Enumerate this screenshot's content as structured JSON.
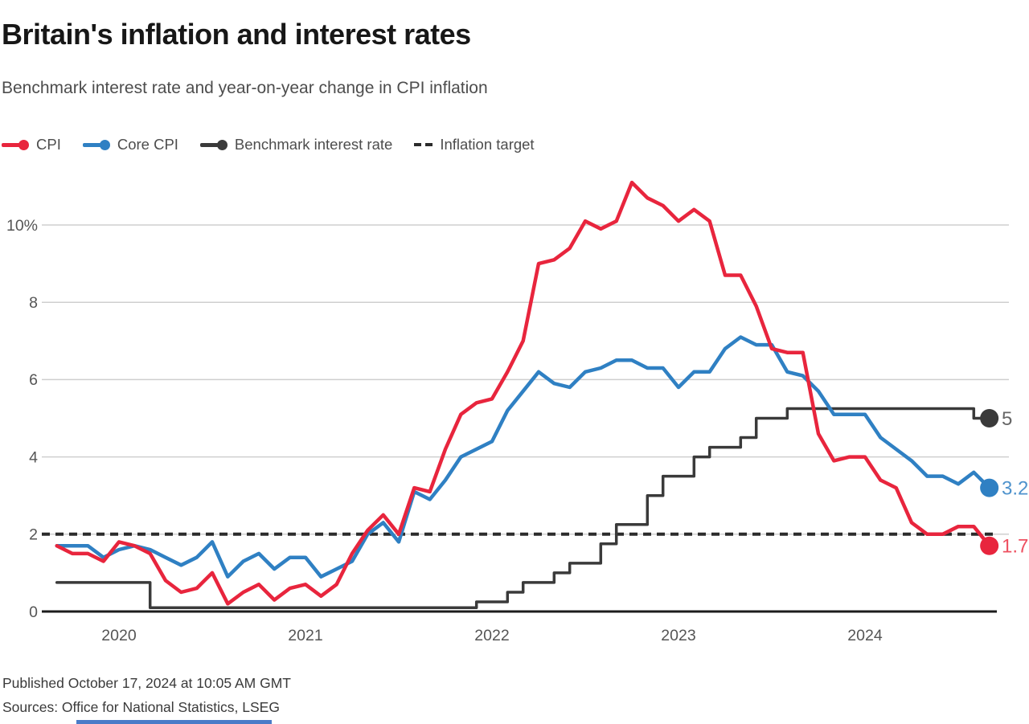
{
  "header": {
    "title": "Britain's inflation and interest rates",
    "subtitle": "Benchmark interest rate and year-on-year change in CPI inflation"
  },
  "legend": {
    "items": [
      {
        "label": "CPI",
        "color": "#e8253d",
        "marker": "line-dot"
      },
      {
        "label": "Core CPI",
        "color": "#2f80c3",
        "marker": "line-dot"
      },
      {
        "label": "Benchmark interest rate",
        "color": "#3a3a3a",
        "marker": "line-dot"
      },
      {
        "label": "Inflation target",
        "color": "#2b2b2b",
        "marker": "dashes"
      }
    ]
  },
  "chart_data": {
    "type": "line",
    "title": "Britain's inflation and interest rates",
    "x_start_month": "2019-09",
    "x_end_month": "2024-09",
    "frequency": "monthly",
    "ylim": [
      0,
      11.5
    ],
    "grid": true,
    "legend_position": "top",
    "grid_color": "#cfcfcf",
    "axis_color": "#1c1c1c",
    "tick_color": "#555555",
    "y_ticks": [
      {
        "value": 0,
        "label": "0"
      },
      {
        "value": 2,
        "label": "2"
      },
      {
        "value": 4,
        "label": "4"
      },
      {
        "value": 6,
        "label": "6"
      },
      {
        "value": 8,
        "label": "8"
      },
      {
        "value": 10,
        "label": "10%"
      }
    ],
    "x_ticks": [
      {
        "month_index": 4,
        "label": "2020"
      },
      {
        "month_index": 16,
        "label": "2021"
      },
      {
        "month_index": 28,
        "label": "2022"
      },
      {
        "month_index": 40,
        "label": "2023"
      },
      {
        "month_index": 52,
        "label": "2024"
      }
    ],
    "series": [
      {
        "name": "CPI",
        "color": "#e8253d",
        "width": 4.5,
        "z": 4,
        "end_label": "1.7",
        "end_label_color": "#ee5060",
        "values": [
          1.7,
          1.5,
          1.5,
          1.3,
          1.8,
          1.7,
          1.5,
          0.8,
          0.5,
          0.6,
          1.0,
          0.2,
          0.5,
          0.7,
          0.3,
          0.6,
          0.7,
          0.4,
          0.7,
          1.5,
          2.1,
          2.5,
          2.0,
          3.2,
          3.1,
          4.2,
          5.1,
          5.4,
          5.5,
          6.2,
          7.0,
          9.0,
          9.1,
          9.4,
          10.1,
          9.9,
          10.1,
          11.1,
          10.7,
          10.5,
          10.1,
          10.4,
          10.1,
          8.7,
          8.7,
          7.9,
          6.8,
          6.7,
          6.7,
          4.6,
          3.9,
          4.0,
          4.0,
          3.4,
          3.2,
          2.3,
          2.0,
          2.0,
          2.2,
          2.2,
          1.7
        ]
      },
      {
        "name": "Core CPI",
        "color": "#2f80c3",
        "width": 4.5,
        "z": 3,
        "end_label": "3.2",
        "end_label_color": "#4f93cd",
        "values": [
          1.7,
          1.7,
          1.7,
          1.4,
          1.6,
          1.7,
          1.6,
          1.4,
          1.2,
          1.4,
          1.8,
          0.9,
          1.3,
          1.5,
          1.1,
          1.4,
          1.4,
          0.9,
          1.1,
          1.3,
          2.0,
          2.3,
          1.8,
          3.1,
          2.9,
          3.4,
          4.0,
          4.2,
          4.4,
          5.2,
          5.7,
          6.2,
          5.9,
          5.8,
          6.2,
          6.3,
          6.5,
          6.5,
          6.3,
          6.3,
          5.8,
          6.2,
          6.2,
          6.8,
          7.1,
          6.9,
          6.9,
          6.2,
          6.1,
          5.7,
          5.1,
          5.1,
          5.1,
          4.5,
          4.2,
          3.9,
          3.5,
          3.5,
          3.3,
          3.6,
          3.2
        ]
      },
      {
        "name": "Benchmark interest rate",
        "color": "#3a3a3a",
        "width": 3.5,
        "z": 2,
        "step": true,
        "end_label": "5",
        "end_label_color": "#666666",
        "values": [
          0.75,
          0.75,
          0.75,
          0.75,
          0.75,
          0.75,
          0.1,
          0.1,
          0.1,
          0.1,
          0.1,
          0.1,
          0.1,
          0.1,
          0.1,
          0.1,
          0.1,
          0.1,
          0.1,
          0.1,
          0.1,
          0.1,
          0.1,
          0.1,
          0.1,
          0.1,
          0.1,
          0.25,
          0.25,
          0.5,
          0.75,
          0.75,
          1.0,
          1.25,
          1.25,
          1.75,
          2.25,
          2.25,
          3.0,
          3.5,
          3.5,
          4.0,
          4.25,
          4.25,
          4.5,
          5.0,
          5.0,
          5.25,
          5.25,
          5.25,
          5.25,
          5.25,
          5.25,
          5.25,
          5.25,
          5.25,
          5.25,
          5.25,
          5.25,
          5.0,
          5.0
        ]
      },
      {
        "name": "Inflation target",
        "color": "#2b2b2b",
        "width": 4,
        "z": 1,
        "dashed": true,
        "constant_value": 2
      }
    ]
  },
  "footer": {
    "published": "Published October 17, 2024 at 10:05 AM GMT",
    "sources": "Sources: Office for National Statistics, LSEG"
  },
  "colors": {
    "bottom_bar": "#4a7bc8"
  }
}
